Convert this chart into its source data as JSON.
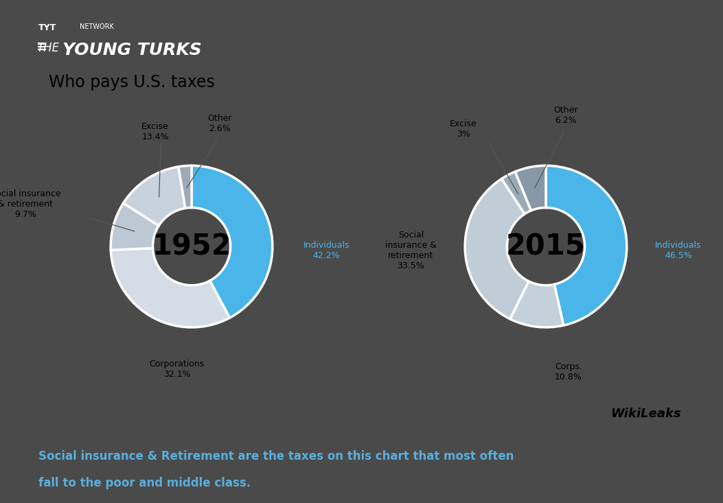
{
  "title": "Who pays U.S. taxes",
  "chart1_year": "1952",
  "chart2_year": "2015",
  "chart1_values": [
    42.2,
    32.1,
    9.7,
    13.4,
    2.6
  ],
  "chart1_colors": [
    "#4ab5e8",
    "#d4dce6",
    "#bcc8d4",
    "#c8d2dc",
    "#9eaab8"
  ],
  "chart2_values": [
    46.5,
    10.8,
    33.5,
    3.0,
    6.2
  ],
  "chart2_colors": [
    "#4ab5e8",
    "#c4d0da",
    "#c0ccd6",
    "#9aabb8",
    "#8898a8"
  ],
  "footer_text_line1": "Social insurance & Retirement are the taxes on this chart that most often",
  "footer_text_line2": "fall to the poor and middle class.",
  "footer_text_color": "#5aaedc",
  "wikileaks_text": "WikiLeaks",
  "outer_bg": "#4a4a4a",
  "main_bg": "white",
  "header_bg": "#1c1c1c",
  "footer_bg": "white"
}
